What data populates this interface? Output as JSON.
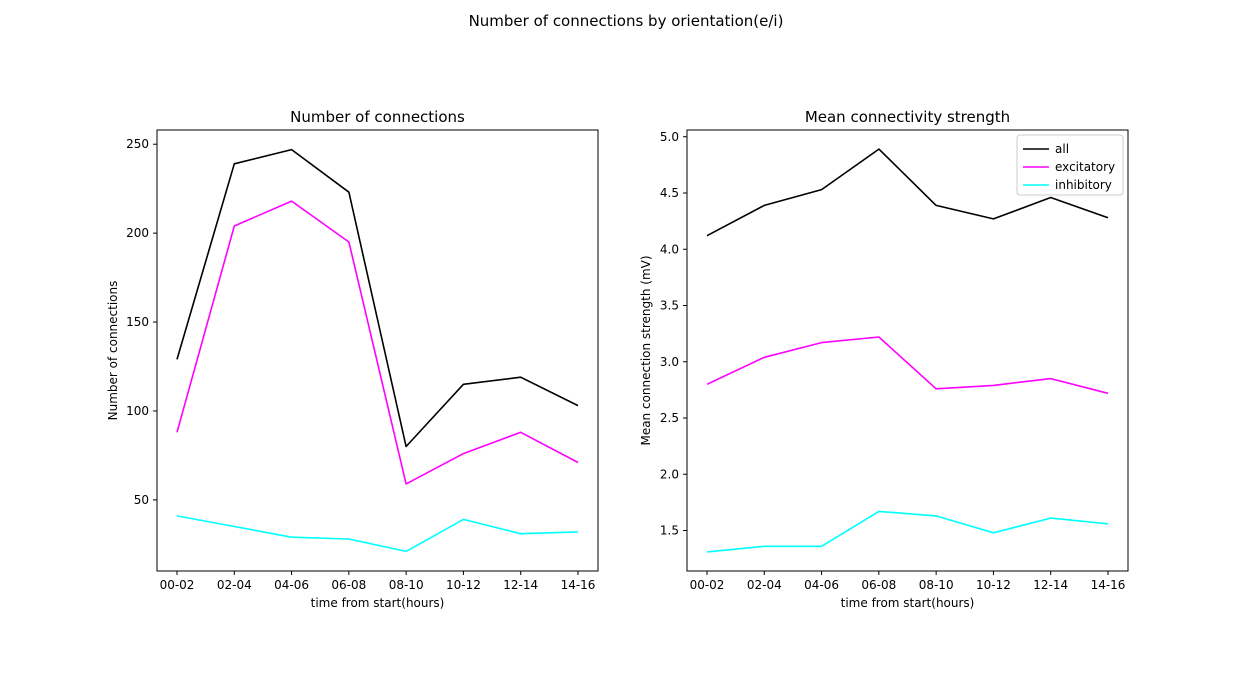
{
  "figure": {
    "suptitle": "Number of connections by orientation(e/i)"
  },
  "chart_data": [
    {
      "type": "line",
      "title": "Number of connections",
      "xlabel": "time from start(hours)",
      "ylabel": "Number of connections",
      "categories": [
        "00-02",
        "02-04",
        "04-06",
        "06-08",
        "08-10",
        "10-12",
        "12-14",
        "14-16"
      ],
      "ylim": [
        10,
        258
      ],
      "yticks": [
        50,
        100,
        150,
        200,
        250
      ],
      "grid": false,
      "legend": null,
      "series": [
        {
          "name": "all",
          "color": "#000000",
          "values": [
            129,
            239,
            247,
            223,
            80,
            115,
            119,
            103
          ]
        },
        {
          "name": "excitatory",
          "color": "#ff00ff",
          "values": [
            88,
            204,
            218,
            195,
            59,
            76,
            88,
            71
          ]
        },
        {
          "name": "inhibitory",
          "color": "#00ffff",
          "values": [
            41,
            35,
            29,
            28,
            21,
            39,
            31,
            32
          ]
        }
      ]
    },
    {
      "type": "line",
      "title": "Mean connectivity strength",
      "xlabel": "time from start(hours)",
      "ylabel": "Mean connection strength (mV)",
      "categories": [
        "00-02",
        "02-04",
        "04-06",
        "06-08",
        "08-10",
        "10-12",
        "12-14",
        "14-16"
      ],
      "ylim": [
        1.14,
        5.06
      ],
      "yticks": [
        1.5,
        2.0,
        2.5,
        3.0,
        3.5,
        4.0,
        4.5,
        5.0
      ],
      "ytick_labels": [
        "1.5",
        "2.0",
        "2.5",
        "3.0",
        "3.5",
        "4.0",
        "4.5",
        "5.0"
      ],
      "grid": false,
      "legend": "top-right",
      "series": [
        {
          "name": "all",
          "color": "#000000",
          "values": [
            4.12,
            4.39,
            4.53,
            4.89,
            4.39,
            4.27,
            4.46,
            4.28
          ]
        },
        {
          "name": "excitatory",
          "color": "#ff00ff",
          "values": [
            2.8,
            3.04,
            3.17,
            3.22,
            2.76,
            2.79,
            2.85,
            2.72
          ]
        },
        {
          "name": "inhibitory",
          "color": "#00ffff",
          "values": [
            1.31,
            1.36,
            1.36,
            1.67,
            1.63,
            1.48,
            1.61,
            1.56
          ]
        }
      ]
    }
  ]
}
